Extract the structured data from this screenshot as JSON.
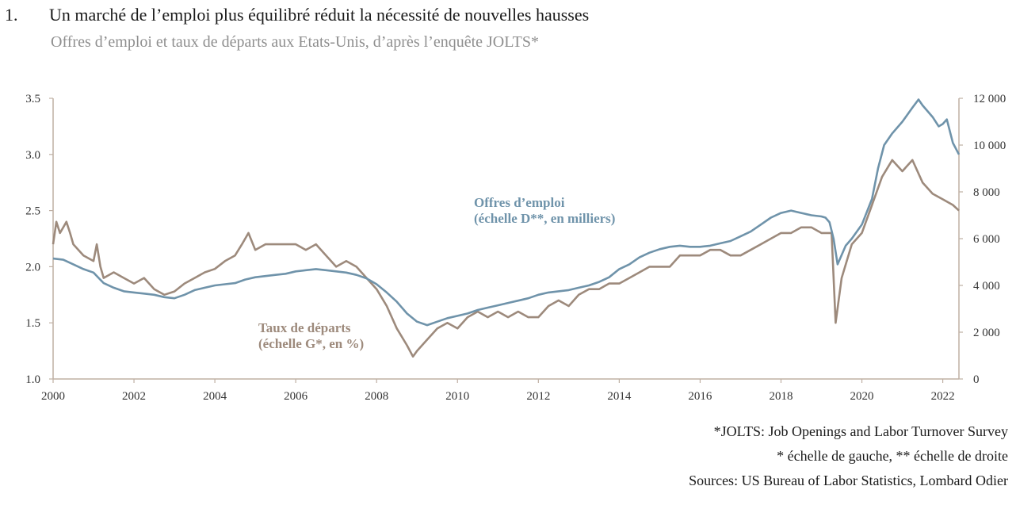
{
  "header": {
    "number": "1.",
    "title": "Un marché de l’emploi plus équilibré réduit la nécessité de nouvelles hausses",
    "subtitle": "Offres d’emploi et taux de départs aux Etats-Unis, d’après l’enquête JOLTS*"
  },
  "footnotes": {
    "jolts": "*JOLTS: Job Openings and Labor Turnover Survey",
    "scales": "* échelle de gauche, ** échelle de droite",
    "sources": "Sources: US Bureau of Labor Statistics, Lombard Odier"
  },
  "colors": {
    "openings": "#6f93aa",
    "quits": "#9d8a7c",
    "axis": "#bfb0a4"
  },
  "chart_data": {
    "type": "line",
    "x_ticks": [
      "2000",
      "2002",
      "2004",
      "2006",
      "2008",
      "2010",
      "2012",
      "2014",
      "2016",
      "2018",
      "2020",
      "2022"
    ],
    "x_range": [
      2000,
      2022.4
    ],
    "y_left": {
      "ticks": [
        "1.0",
        "1.5",
        "2.0",
        "2.5",
        "3.0",
        "3.5"
      ],
      "range": [
        1.0,
        3.5
      ]
    },
    "y_right": {
      "ticks": [
        "0",
        "2 000",
        "4 000",
        "6 000",
        "8 000",
        "10 000",
        "12 000"
      ],
      "range": [
        0,
        12000
      ]
    },
    "grid": "none",
    "series": [
      {
        "name_line1": "Offres d’emploi",
        "name_line2": "(échelle D**, en milliers)",
        "axis": "right",
        "points": [
          [
            2000.0,
            5150
          ],
          [
            2000.25,
            5100
          ],
          [
            2000.5,
            4900
          ],
          [
            2000.75,
            4700
          ],
          [
            2001.0,
            4550
          ],
          [
            2001.25,
            4100
          ],
          [
            2001.5,
            3900
          ],
          [
            2001.75,
            3750
          ],
          [
            2002.0,
            3700
          ],
          [
            2002.25,
            3650
          ],
          [
            2002.5,
            3600
          ],
          [
            2002.75,
            3500
          ],
          [
            2003.0,
            3450
          ],
          [
            2003.25,
            3600
          ],
          [
            2003.5,
            3800
          ],
          [
            2003.75,
            3900
          ],
          [
            2004.0,
            4000
          ],
          [
            2004.25,
            4050
          ],
          [
            2004.5,
            4100
          ],
          [
            2004.75,
            4250
          ],
          [
            2005.0,
            4350
          ],
          [
            2005.25,
            4400
          ],
          [
            2005.5,
            4450
          ],
          [
            2005.75,
            4500
          ],
          [
            2006.0,
            4600
          ],
          [
            2006.25,
            4650
          ],
          [
            2006.5,
            4700
          ],
          [
            2006.75,
            4650
          ],
          [
            2007.0,
            4600
          ],
          [
            2007.25,
            4550
          ],
          [
            2007.5,
            4450
          ],
          [
            2007.75,
            4300
          ],
          [
            2008.0,
            4050
          ],
          [
            2008.25,
            3700
          ],
          [
            2008.5,
            3300
          ],
          [
            2008.75,
            2800
          ],
          [
            2009.0,
            2450
          ],
          [
            2009.25,
            2300
          ],
          [
            2009.5,
            2450
          ],
          [
            2009.75,
            2600
          ],
          [
            2010.0,
            2700
          ],
          [
            2010.25,
            2800
          ],
          [
            2010.5,
            2950
          ],
          [
            2010.75,
            3050
          ],
          [
            2011.0,
            3150
          ],
          [
            2011.25,
            3250
          ],
          [
            2011.5,
            3350
          ],
          [
            2011.75,
            3450
          ],
          [
            2012.0,
            3600
          ],
          [
            2012.25,
            3700
          ],
          [
            2012.5,
            3750
          ],
          [
            2012.75,
            3800
          ],
          [
            2013.0,
            3900
          ],
          [
            2013.25,
            4000
          ],
          [
            2013.5,
            4150
          ],
          [
            2013.75,
            4350
          ],
          [
            2014.0,
            4700
          ],
          [
            2014.25,
            4900
          ],
          [
            2014.5,
            5200
          ],
          [
            2014.75,
            5400
          ],
          [
            2015.0,
            5550
          ],
          [
            2015.25,
            5650
          ],
          [
            2015.5,
            5700
          ],
          [
            2015.75,
            5650
          ],
          [
            2016.0,
            5650
          ],
          [
            2016.25,
            5700
          ],
          [
            2016.5,
            5800
          ],
          [
            2016.75,
            5900
          ],
          [
            2017.0,
            6100
          ],
          [
            2017.25,
            6300
          ],
          [
            2017.5,
            6600
          ],
          [
            2017.75,
            6900
          ],
          [
            2018.0,
            7100
          ],
          [
            2018.25,
            7200
          ],
          [
            2018.5,
            7100
          ],
          [
            2018.75,
            7000
          ],
          [
            2019.0,
            6950
          ],
          [
            2019.1,
            6900
          ],
          [
            2019.2,
            6700
          ],
          [
            2019.3,
            6000
          ],
          [
            2019.4,
            4900
          ],
          [
            2019.5,
            5300
          ],
          [
            2019.6,
            5700
          ],
          [
            2019.75,
            6000
          ],
          [
            2020.0,
            6600
          ],
          [
            2020.25,
            7700
          ],
          [
            2020.4,
            9000
          ],
          [
            2020.55,
            10000
          ],
          [
            2020.75,
            10500
          ],
          [
            2021.0,
            11000
          ],
          [
            2021.25,
            11600
          ],
          [
            2021.4,
            11950
          ],
          [
            2021.5,
            11700
          ],
          [
            2021.75,
            11200
          ],
          [
            2021.9,
            10800
          ],
          [
            2022.0,
            10900
          ],
          [
            2022.1,
            11100
          ],
          [
            2022.25,
            10100
          ],
          [
            2022.4,
            9600
          ]
        ]
      },
      {
        "name_line1": "Taux de départs",
        "name_line2": "(échelle G*, en %)",
        "axis": "left",
        "points": [
          [
            2000.0,
            2.2
          ],
          [
            2000.08,
            2.4
          ],
          [
            2000.17,
            2.3
          ],
          [
            2000.25,
            2.35
          ],
          [
            2000.33,
            2.4
          ],
          [
            2000.42,
            2.3
          ],
          [
            2000.5,
            2.2
          ],
          [
            2000.75,
            2.1
          ],
          [
            2001.0,
            2.05
          ],
          [
            2001.08,
            2.2
          ],
          [
            2001.17,
            2.0
          ],
          [
            2001.25,
            1.9
          ],
          [
            2001.5,
            1.95
          ],
          [
            2001.75,
            1.9
          ],
          [
            2002.0,
            1.85
          ],
          [
            2002.25,
            1.9
          ],
          [
            2002.5,
            1.8
          ],
          [
            2002.75,
            1.75
          ],
          [
            2003.0,
            1.78
          ],
          [
            2003.25,
            1.85
          ],
          [
            2003.5,
            1.9
          ],
          [
            2003.75,
            1.95
          ],
          [
            2004.0,
            1.98
          ],
          [
            2004.25,
            2.05
          ],
          [
            2004.5,
            2.1
          ],
          [
            2004.67,
            2.2
          ],
          [
            2004.75,
            2.25
          ],
          [
            2004.83,
            2.3
          ],
          [
            2005.0,
            2.15
          ],
          [
            2005.25,
            2.2
          ],
          [
            2005.5,
            2.2
          ],
          [
            2005.75,
            2.2
          ],
          [
            2006.0,
            2.2
          ],
          [
            2006.25,
            2.15
          ],
          [
            2006.5,
            2.2
          ],
          [
            2006.75,
            2.1
          ],
          [
            2007.0,
            2.0
          ],
          [
            2007.25,
            2.05
          ],
          [
            2007.5,
            2.0
          ],
          [
            2007.75,
            1.9
          ],
          [
            2008.0,
            1.8
          ],
          [
            2008.25,
            1.65
          ],
          [
            2008.5,
            1.45
          ],
          [
            2008.75,
            1.3
          ],
          [
            2008.9,
            1.2
          ],
          [
            2009.0,
            1.25
          ],
          [
            2009.25,
            1.35
          ],
          [
            2009.5,
            1.45
          ],
          [
            2009.75,
            1.5
          ],
          [
            2010.0,
            1.45
          ],
          [
            2010.25,
            1.55
          ],
          [
            2010.5,
            1.6
          ],
          [
            2010.75,
            1.55
          ],
          [
            2011.0,
            1.6
          ],
          [
            2011.25,
            1.55
          ],
          [
            2011.5,
            1.6
          ],
          [
            2011.75,
            1.55
          ],
          [
            2012.0,
            1.55
          ],
          [
            2012.25,
            1.65
          ],
          [
            2012.5,
            1.7
          ],
          [
            2012.75,
            1.65
          ],
          [
            2013.0,
            1.75
          ],
          [
            2013.25,
            1.8
          ],
          [
            2013.5,
            1.8
          ],
          [
            2013.75,
            1.85
          ],
          [
            2014.0,
            1.85
          ],
          [
            2014.25,
            1.9
          ],
          [
            2014.5,
            1.95
          ],
          [
            2014.75,
            2.0
          ],
          [
            2015.0,
            2.0
          ],
          [
            2015.25,
            2.0
          ],
          [
            2015.5,
            2.1
          ],
          [
            2015.75,
            2.1
          ],
          [
            2016.0,
            2.1
          ],
          [
            2016.25,
            2.15
          ],
          [
            2016.5,
            2.15
          ],
          [
            2016.75,
            2.1
          ],
          [
            2017.0,
            2.1
          ],
          [
            2017.25,
            2.15
          ],
          [
            2017.5,
            2.2
          ],
          [
            2017.75,
            2.25
          ],
          [
            2018.0,
            2.3
          ],
          [
            2018.25,
            2.3
          ],
          [
            2018.5,
            2.35
          ],
          [
            2018.75,
            2.35
          ],
          [
            2019.0,
            2.3
          ],
          [
            2019.25,
            2.3
          ],
          [
            2019.35,
            1.5
          ],
          [
            2019.5,
            1.9
          ],
          [
            2019.75,
            2.2
          ],
          [
            2020.0,
            2.3
          ],
          [
            2020.25,
            2.55
          ],
          [
            2020.5,
            2.8
          ],
          [
            2020.75,
            2.95
          ],
          [
            2021.0,
            2.85
          ],
          [
            2021.25,
            2.95
          ],
          [
            2021.5,
            2.75
          ],
          [
            2021.75,
            2.65
          ],
          [
            2022.0,
            2.6
          ],
          [
            2022.25,
            2.55
          ],
          [
            2022.4,
            2.5
          ]
        ]
      }
    ]
  }
}
